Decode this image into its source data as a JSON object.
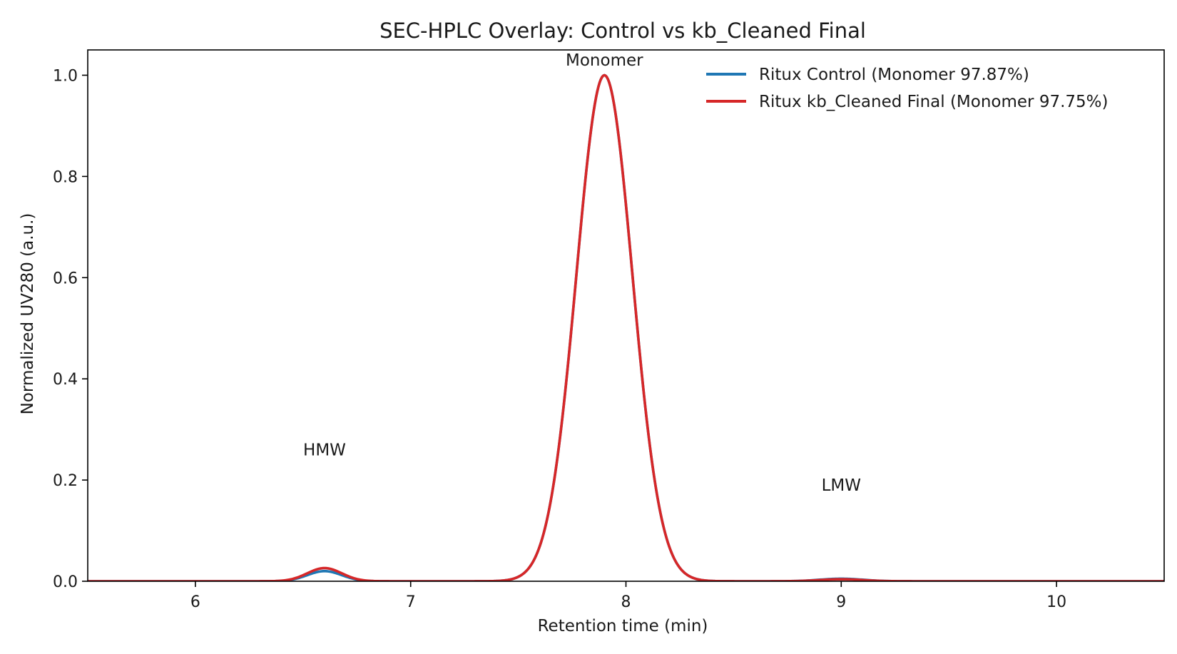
{
  "chart_data": {
    "type": "line",
    "title": "SEC-HPLC Overlay: Control vs kb_Cleaned Final",
    "xlabel": "Retention time (min)",
    "ylabel": "Normalized UV280 (a.u.)",
    "xlim": [
      5.5,
      10.5
    ],
    "ylim": [
      0.0,
      1.05
    ],
    "xticks": [
      6,
      7,
      8,
      9,
      10
    ],
    "xtick_labels": [
      "6",
      "7",
      "8",
      "9",
      "10"
    ],
    "yticks": [
      0.0,
      0.2,
      0.4,
      0.6,
      0.8,
      1.0
    ],
    "ytick_labels": [
      "0.0",
      "0.2",
      "0.4",
      "0.6",
      "0.8",
      "1.0"
    ],
    "grid": false,
    "legend_position": "top-right",
    "series": [
      {
        "name": "Ritux Control (Monomer 97.87%)",
        "color": "#1f77b4",
        "peaks": [
          {
            "label": "HMW",
            "center": 6.6,
            "height": 0.02,
            "sigma": 0.08
          },
          {
            "label": "Monomer",
            "center": 7.9,
            "height": 1.0,
            "sigma": 0.13
          },
          {
            "label": "LMW",
            "center": 9.0,
            "height": 0.005,
            "sigma": 0.1
          }
        ]
      },
      {
        "name": "Ritux kb_Cleaned Final (Monomer 97.75%)",
        "color": "#d62728",
        "peaks": [
          {
            "label": "HMW",
            "center": 6.6,
            "height": 0.026,
            "sigma": 0.08
          },
          {
            "label": "Monomer",
            "center": 7.9,
            "height": 1.0,
            "sigma": 0.13
          },
          {
            "label": "LMW",
            "center": 9.0,
            "height": 0.004,
            "sigma": 0.1
          }
        ]
      }
    ],
    "annotations": [
      {
        "text": "HMW",
        "x": 6.6,
        "y": 0.26
      },
      {
        "text": "Monomer",
        "x": 7.9,
        "y": 1.03
      },
      {
        "text": "LMW",
        "x": 9.0,
        "y": 0.19
      }
    ]
  }
}
